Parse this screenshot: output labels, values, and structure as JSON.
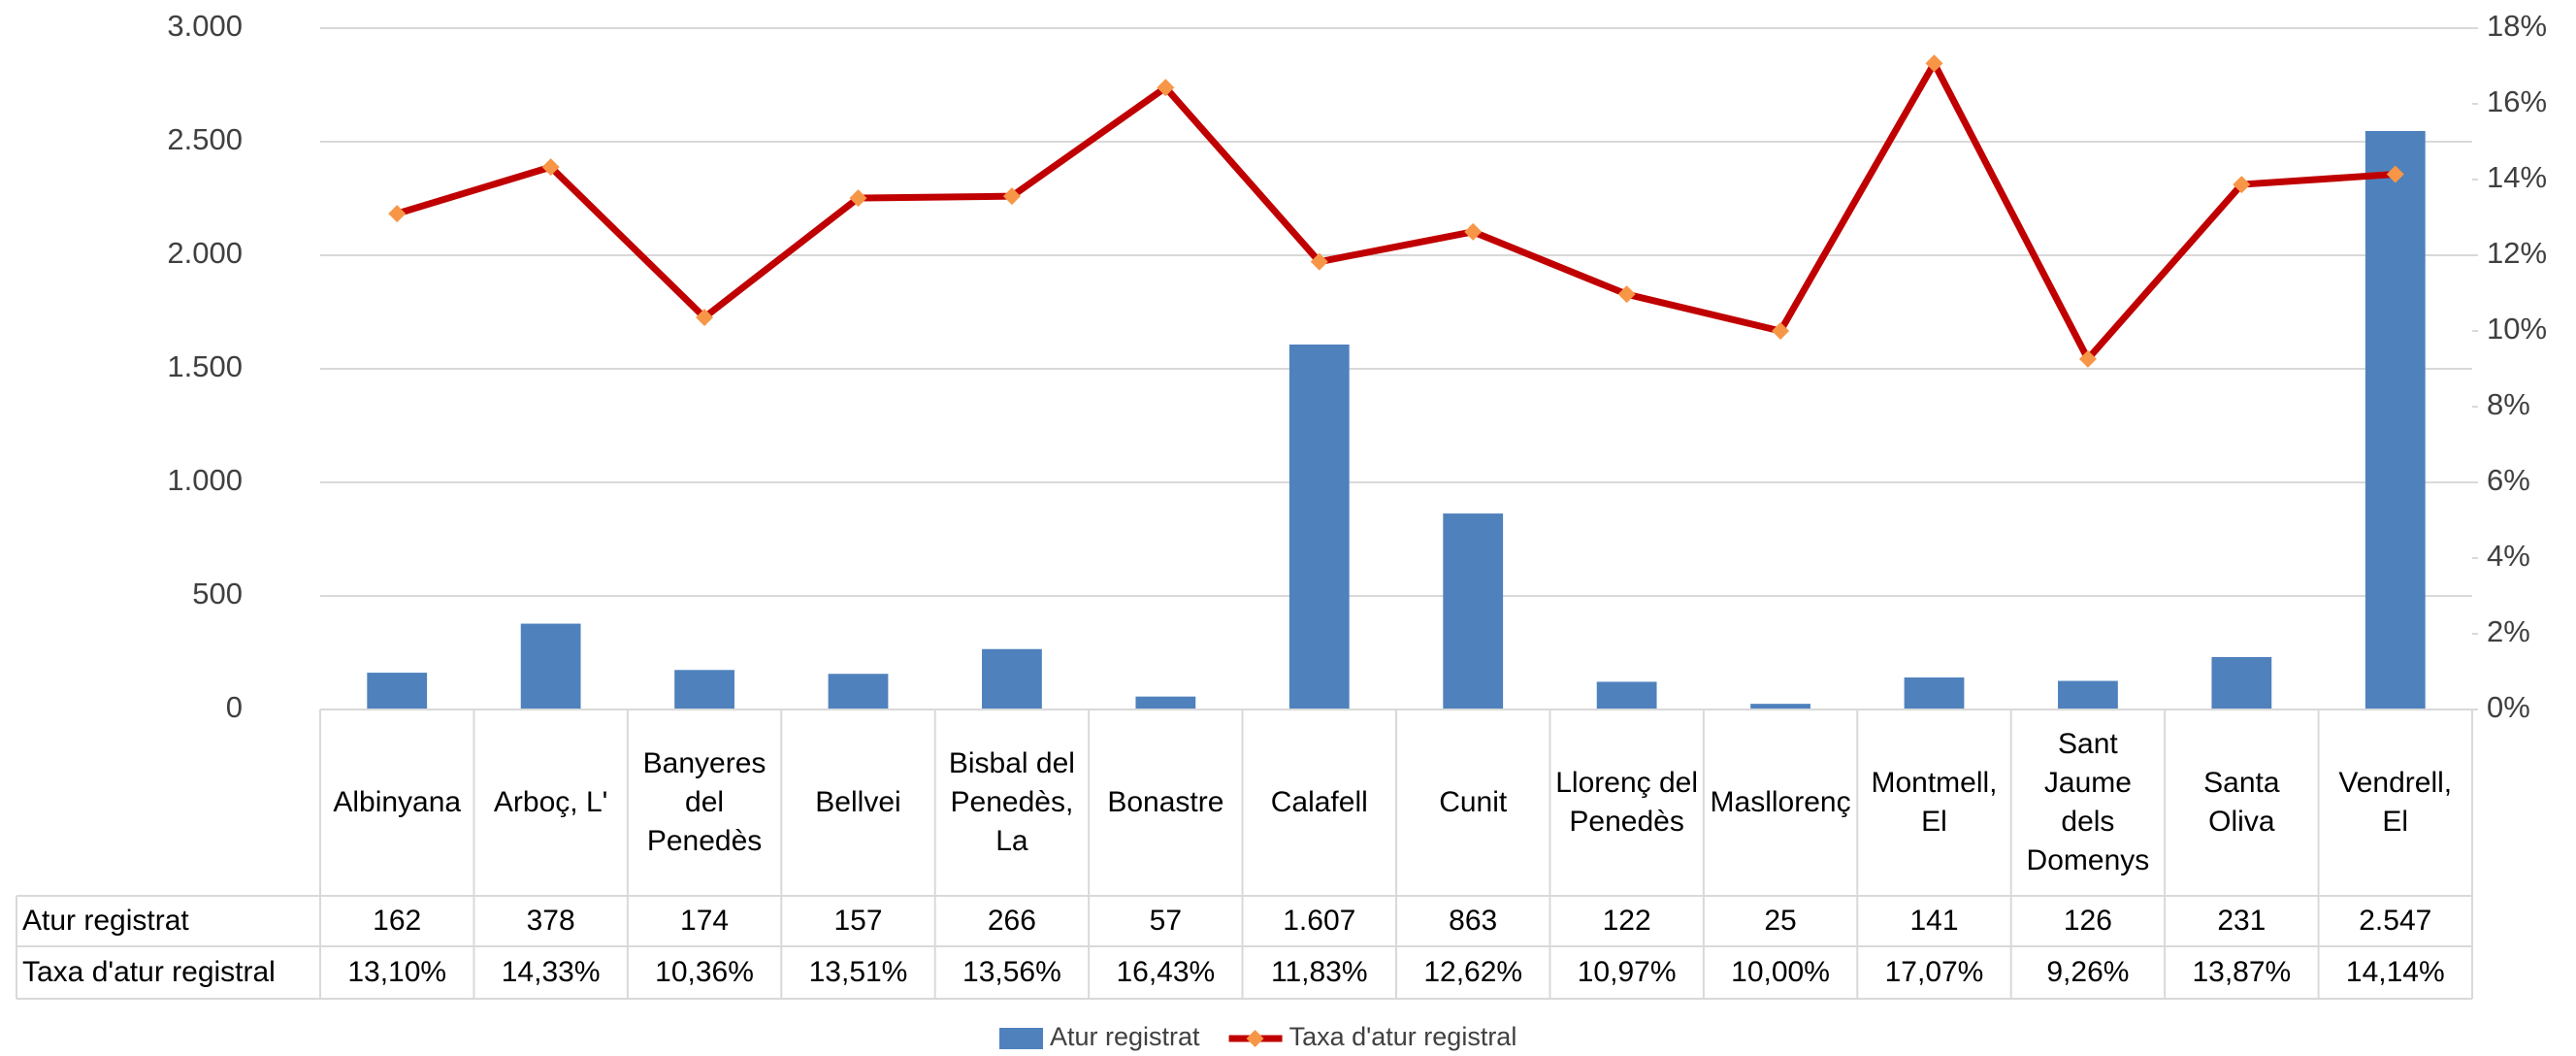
{
  "chart_data": {
    "type": "bar_line",
    "categories": [
      "Albinyana",
      "Arboç, L'",
      "Banyeres del Penedès",
      "Bellvei",
      "Bisbal del Penedès, La",
      "Bonastre",
      "Calafell",
      "Cunit",
      "Llorenç del Penedès",
      "Masllorenç",
      "Montmell, El",
      "Sant Jaume dels Domenys",
      "Santa Oliva",
      "Vendrell, El"
    ],
    "series": [
      {
        "name": "Atur registrat",
        "type": "bar",
        "color": "#4f81bd",
        "values": [
          162,
          378,
          174,
          157,
          266,
          57,
          1607,
          863,
          122,
          25,
          141,
          126,
          231,
          2547
        ],
        "value_labels": [
          "162",
          "378",
          "174",
          "157",
          "266",
          "57",
          "1.607",
          "863",
          "122",
          "25",
          "141",
          "126",
          "231",
          "2.547"
        ]
      },
      {
        "name": "Taxa d'atur registral",
        "type": "line",
        "axis": "y2",
        "color": "#c00000",
        "marker_color": "#f79646",
        "values": [
          13.1,
          14.33,
          10.36,
          13.51,
          13.56,
          16.43,
          11.83,
          12.62,
          10.97,
          10.0,
          17.07,
          9.26,
          13.87,
          14.14
        ],
        "value_labels": [
          "13,10%",
          "14,33%",
          "10,36%",
          "13,51%",
          "13,56%",
          "16,43%",
          "11,83%",
          "12,62%",
          "10,97%",
          "10,00%",
          "17,07%",
          "9,26%",
          "13,87%",
          "14,14%"
        ]
      }
    ],
    "ylim": [
      0,
      3000
    ],
    "yticks": [
      0,
      500,
      {
        "value": 1000,
        "label": "1.000"
      },
      {
        "value": 1500,
        "label": "1.500"
      },
      {
        "value": 2000,
        "label": "2.000"
      },
      {
        "value": 2500,
        "label": "2.500"
      },
      {
        "value": 3000,
        "label": "3.000"
      }
    ],
    "y2lim": [
      0,
      18
    ],
    "y2ticks": [
      {
        "value": 0,
        "label": "0%"
      },
      {
        "value": 2,
        "label": "2%"
      },
      {
        "value": 4,
        "label": "4%"
      },
      {
        "value": 6,
        "label": "6%"
      },
      {
        "value": 8,
        "label": "8%"
      },
      {
        "value": 10,
        "label": "10%"
      },
      {
        "value": 12,
        "label": "12%"
      },
      {
        "value": 14,
        "label": "14%"
      },
      {
        "value": 16,
        "label": "16%"
      },
      {
        "value": 18,
        "label": "18%"
      }
    ],
    "grid": true,
    "legend": "bottom",
    "data_table": true
  }
}
